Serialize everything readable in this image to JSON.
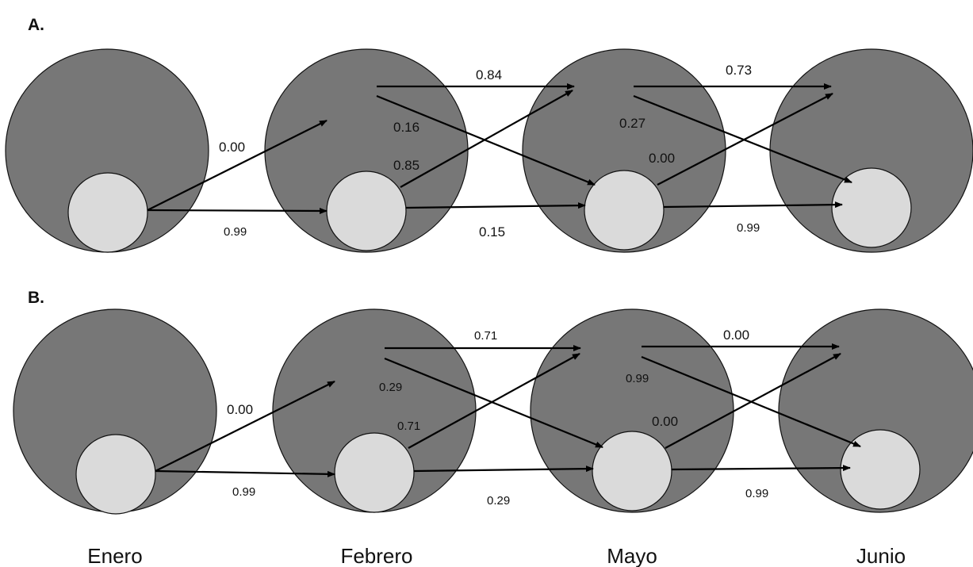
{
  "panels": [
    {
      "label": "A.",
      "transitions": {
        "enero_to_big": "0.00",
        "enero_to_small": "0.99",
        "feb_big_to_big": "0.84",
        "feb_big_to_small": "0.16",
        "feb_small_to_big": "0.85",
        "feb_small_to_small": "0.15",
        "may_big_to_big": "0.73",
        "may_big_to_small": "0.27",
        "may_small_to_big": "0.00",
        "may_small_to_small": "0.99"
      }
    },
    {
      "label": "B.",
      "transitions": {
        "enero_to_big": "0.00",
        "enero_to_small": "0.99",
        "feb_big_to_big": "0.71",
        "feb_big_to_small": "0.29",
        "feb_small_to_big": "0.71",
        "feb_small_to_small": "0.29",
        "may_big_to_big": "0.00",
        "may_big_to_small": "0.99",
        "may_small_to_big": "0.00",
        "may_small_to_small": "0.99"
      }
    }
  ],
  "months": [
    "Enero",
    "Febrero",
    "Mayo",
    "Junio"
  ]
}
